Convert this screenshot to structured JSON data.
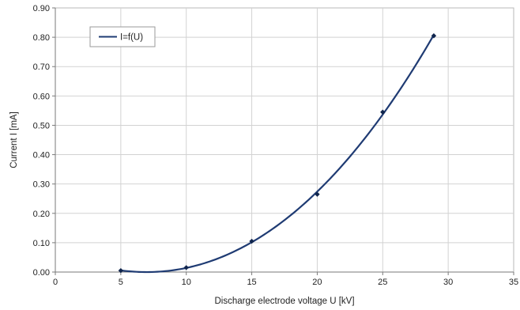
{
  "chart_data": {
    "type": "scatter",
    "xlabel": "Discharge electrode voltage U [kV]",
    "ylabel": "Current I [mA]",
    "xlim": [
      0,
      35
    ],
    "ylim": [
      0,
      0.9
    ],
    "xticks": [
      "0",
      "5",
      "10",
      "15",
      "20",
      "25",
      "30",
      "35"
    ],
    "yticks": [
      "0.00",
      "0.10",
      "0.20",
      "0.30",
      "0.40",
      "0.50",
      "0.60",
      "0.70",
      "0.80",
      "0.90"
    ],
    "grid": true,
    "legend_position": "top-left",
    "series": [
      {
        "name": "I=f(U)",
        "color": "#1f3b73",
        "marker_color": "#10254d",
        "points": [
          {
            "x": 5,
            "y": 0.005
          },
          {
            "x": 10,
            "y": 0.015
          },
          {
            "x": 15,
            "y": 0.105
          },
          {
            "x": 20,
            "y": 0.265
          },
          {
            "x": 25,
            "y": 0.545
          },
          {
            "x": 28.9,
            "y": 0.805
          }
        ],
        "trendline": "polynomial"
      }
    ]
  }
}
